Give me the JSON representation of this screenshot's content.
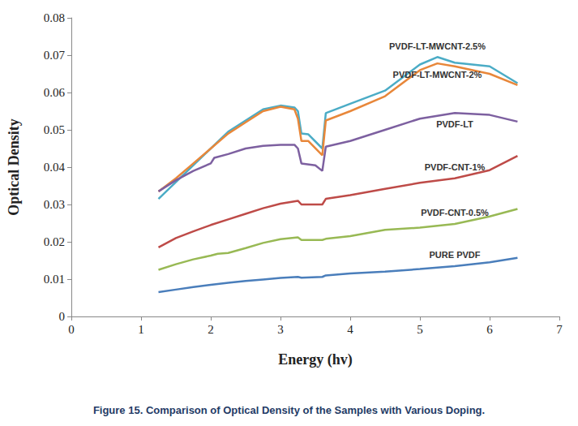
{
  "chart_data": {
    "type": "line",
    "title": "Figure 15. Comparison of Optical Density of the Samples with Various Doping.",
    "x_label": "Energy (hv)",
    "y_label": "Optical Density",
    "xlim": [
      0,
      7
    ],
    "xticks": [
      0,
      1,
      2,
      3,
      4,
      5,
      6,
      7
    ],
    "ylim": [
      0,
      0.08
    ],
    "yticks": [
      0,
      0.01,
      0.02,
      0.03,
      0.04,
      0.05,
      0.06,
      0.07,
      0.08
    ],
    "grid": false,
    "series": [
      {
        "name": "PVDF-LT-MWCNT-2.5%",
        "color": "#4bacc6",
        "x": [
          1.25,
          1.5,
          1.75,
          2.0,
          2.25,
          2.5,
          2.75,
          3.0,
          3.2,
          3.25,
          3.3,
          3.4,
          3.6,
          3.65,
          4.0,
          4.5,
          5.0,
          5.25,
          5.5,
          6.0,
          6.4
        ],
        "values": [
          0.0315,
          0.036,
          0.0405,
          0.045,
          0.0495,
          0.0525,
          0.0555,
          0.0565,
          0.056,
          0.055,
          0.049,
          0.0488,
          0.045,
          0.0545,
          0.057,
          0.0605,
          0.0675,
          0.0695,
          0.068,
          0.067,
          0.0625
        ]
      },
      {
        "name": "PVDF-LT-MWCNT-2%",
        "color": "#e8873a",
        "x": [
          1.25,
          1.5,
          1.75,
          2.0,
          2.25,
          2.5,
          2.75,
          3.0,
          3.2,
          3.25,
          3.3,
          3.4,
          3.6,
          3.65,
          4.0,
          4.5,
          5.0,
          5.25,
          5.5,
          6.0,
          6.4
        ],
        "values": [
          0.0335,
          0.037,
          0.041,
          0.045,
          0.049,
          0.052,
          0.055,
          0.0562,
          0.0555,
          0.053,
          0.047,
          0.047,
          0.0432,
          0.0525,
          0.055,
          0.059,
          0.066,
          0.0678,
          0.067,
          0.065,
          0.062
        ]
      },
      {
        "name": "PVDF-LT",
        "color": "#7d60a0",
        "x": [
          1.25,
          1.5,
          1.75,
          2.0,
          2.05,
          2.25,
          2.5,
          2.75,
          3.0,
          3.2,
          3.25,
          3.3,
          3.5,
          3.6,
          3.65,
          4.0,
          4.5,
          5.0,
          5.5,
          6.0,
          6.4
        ],
        "values": [
          0.0335,
          0.0365,
          0.039,
          0.041,
          0.0425,
          0.0435,
          0.045,
          0.0457,
          0.046,
          0.046,
          0.045,
          0.041,
          0.0405,
          0.039,
          0.0455,
          0.047,
          0.05,
          0.053,
          0.0545,
          0.054,
          0.0522
        ]
      },
      {
        "name": "PVDF-CNT-1%",
        "color": "#be4b48",
        "x": [
          1.25,
          1.5,
          1.75,
          2.0,
          2.25,
          2.5,
          2.75,
          3.0,
          3.25,
          3.3,
          3.6,
          3.65,
          4.0,
          4.5,
          5.0,
          5.5,
          6.0,
          6.4
        ],
        "values": [
          0.0185,
          0.021,
          0.0228,
          0.0245,
          0.026,
          0.0275,
          0.029,
          0.0302,
          0.031,
          0.03,
          0.03,
          0.0315,
          0.0325,
          0.0342,
          0.0358,
          0.037,
          0.0392,
          0.043
        ]
      },
      {
        "name": "PVDF-CNT-0.5%",
        "color": "#98b954",
        "x": [
          1.25,
          1.5,
          1.75,
          2.0,
          2.1,
          2.25,
          2.5,
          2.75,
          3.0,
          3.25,
          3.3,
          3.6,
          3.65,
          4.0,
          4.5,
          5.0,
          5.5,
          6.0,
          6.4
        ],
        "values": [
          0.0125,
          0.014,
          0.0153,
          0.0163,
          0.0168,
          0.017,
          0.0183,
          0.0197,
          0.0207,
          0.0212,
          0.0205,
          0.0205,
          0.0208,
          0.0215,
          0.0232,
          0.0238,
          0.0248,
          0.0268,
          0.0288
        ]
      },
      {
        "name": "PURE PVDF",
        "color": "#4a7ebb",
        "x": [
          1.25,
          1.5,
          1.75,
          2.0,
          2.25,
          2.5,
          2.75,
          3.0,
          3.25,
          3.3,
          3.6,
          3.65,
          4.0,
          4.5,
          5.0,
          5.5,
          6.0,
          6.4
        ],
        "values": [
          0.0065,
          0.0072,
          0.0079,
          0.0085,
          0.009,
          0.0095,
          0.0099,
          0.0103,
          0.0106,
          0.0104,
          0.0106,
          0.011,
          0.0115,
          0.012,
          0.0127,
          0.0135,
          0.0145,
          0.0157
        ]
      }
    ]
  }
}
